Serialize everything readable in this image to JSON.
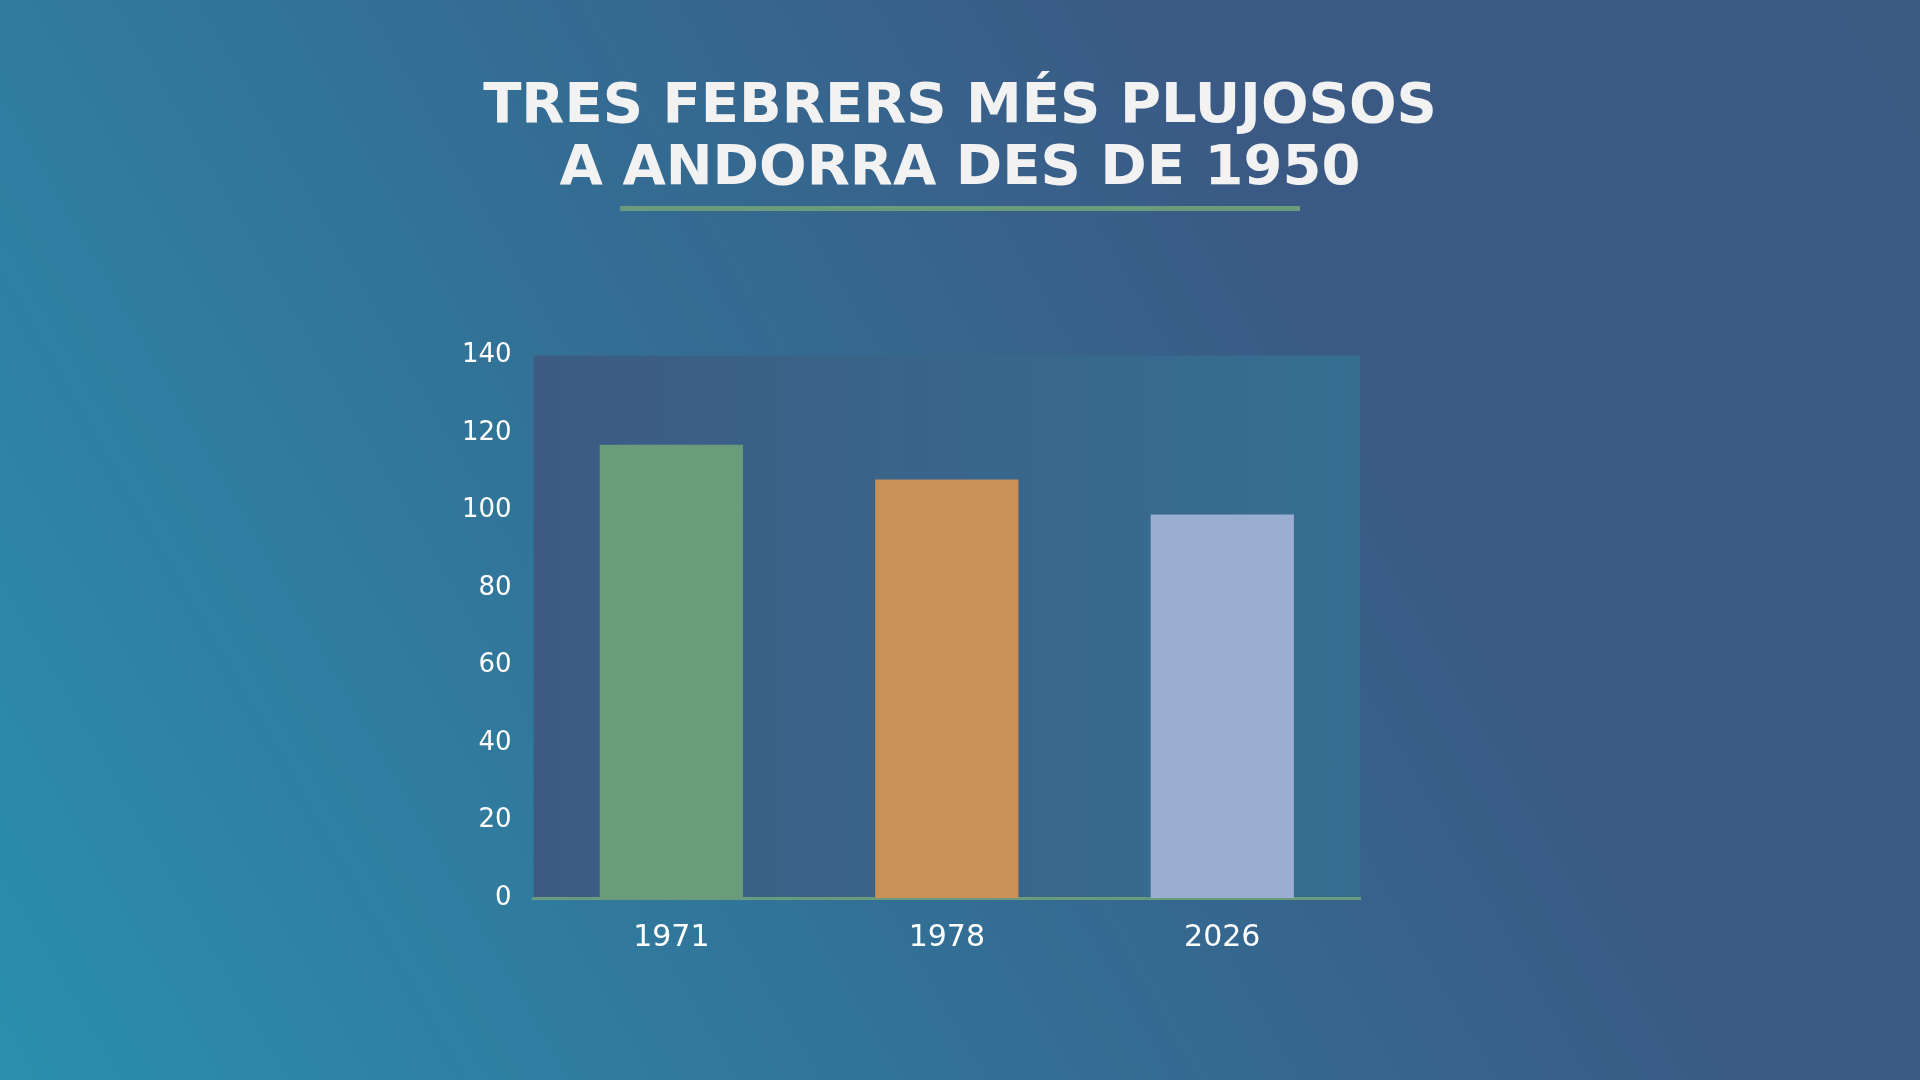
{
  "chart_data": {
    "type": "bar",
    "title": "TRES FEBRERS MÉS PLUJOSOS\nA ANDORRA DES DE 1950",
    "categories": [
      "1971",
      "1978",
      "2026"
    ],
    "values": [
      117,
      108,
      99
    ],
    "colors": [
      "#6a9c7c",
      "#cb9055",
      "#99aed0"
    ],
    "ylim": [
      0,
      140
    ],
    "yticks": [
      0,
      20,
      40,
      60,
      80,
      100,
      120,
      140
    ],
    "grid": false,
    "legend": false
  }
}
